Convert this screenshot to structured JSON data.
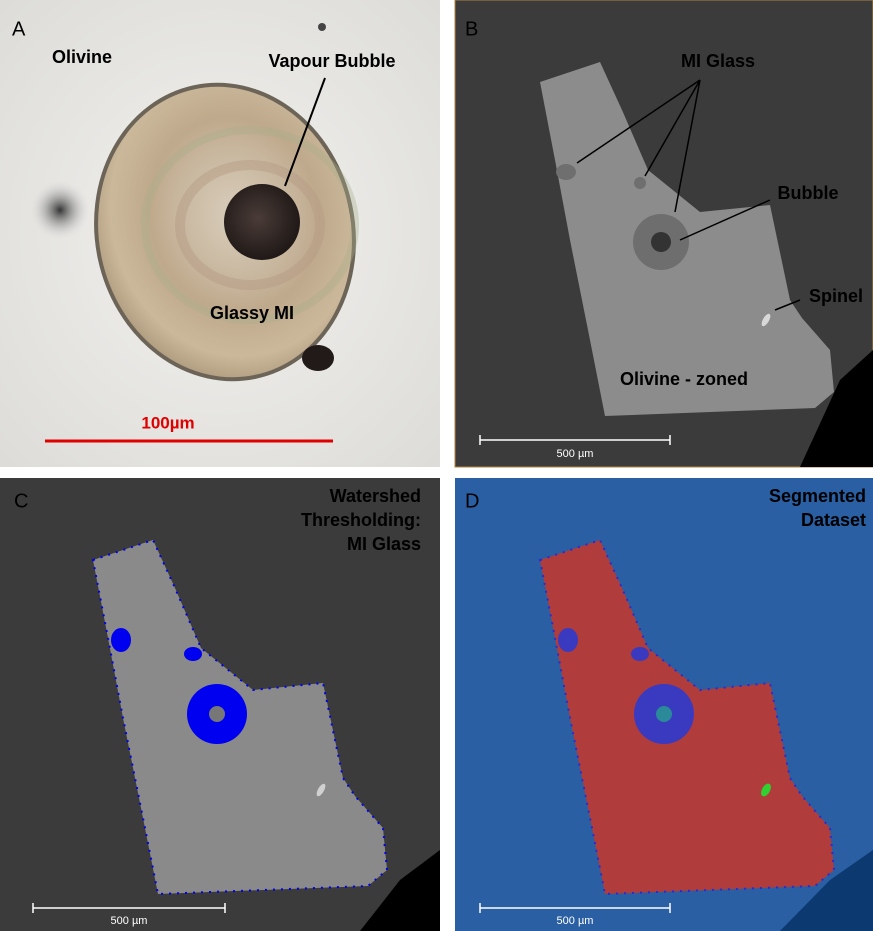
{
  "panels": [
    {
      "label": "A",
      "annotations": [
        "Olivine",
        "Vapour Bubble",
        "Glassy MI"
      ],
      "scale_bar": "100µm"
    },
    {
      "label": "B",
      "annotations": [
        "MI Glass",
        "Bubble",
        "Spinel",
        "Olivine - zoned"
      ],
      "scale_bar": "500 µm"
    },
    {
      "label": "C",
      "annotations": [
        "Watershed",
        "Thresholding:",
        "MI Glass"
      ],
      "scale_bar": "500 µm"
    },
    {
      "label": "D",
      "annotations": [
        "Segmented",
        "Dataset"
      ],
      "scale_bar": "500 µm"
    }
  ]
}
